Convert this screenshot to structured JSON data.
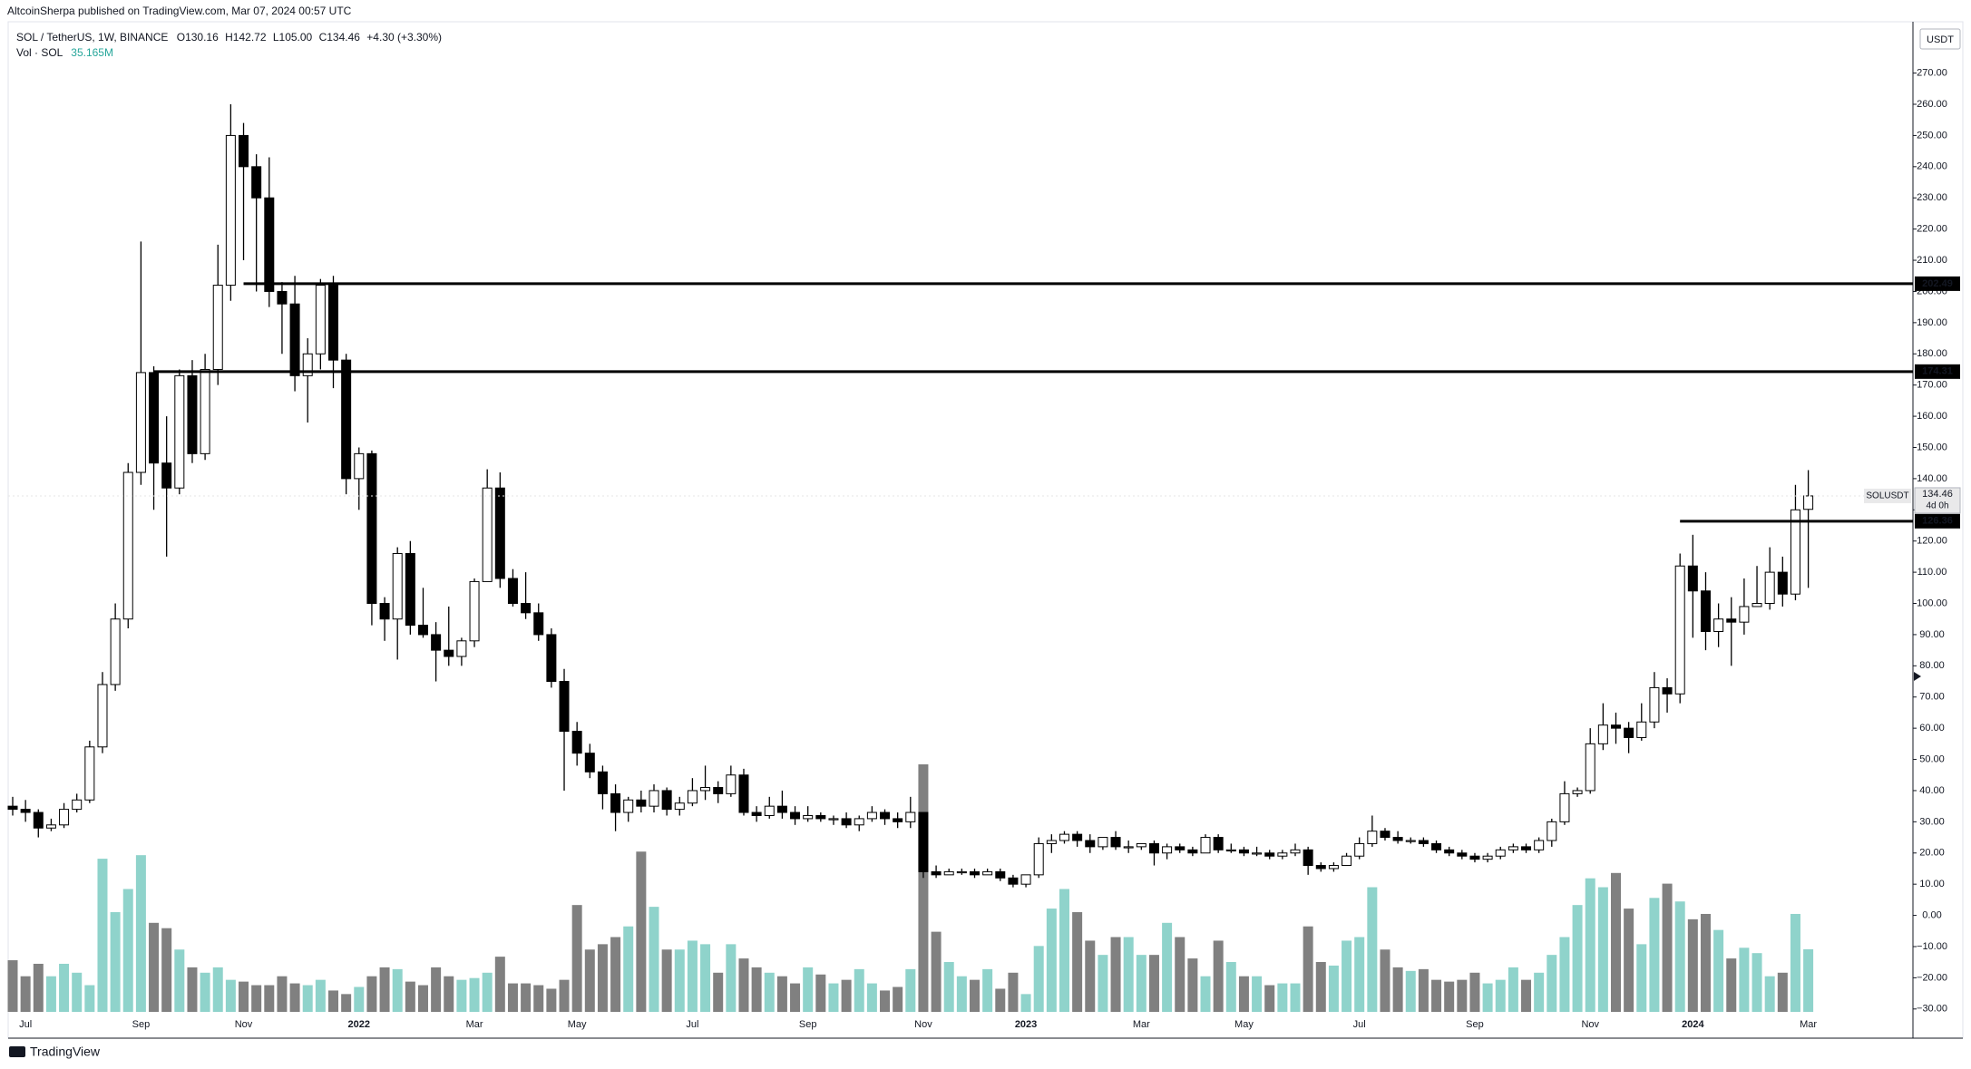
{
  "header": {
    "publisher": "AltcoinSherpa published on TradingView.com, Mar 07, 2024 00:57 UTC"
  },
  "chart_data": {
    "type": "candlestick",
    "legend": {
      "symbol": "SOL / TetherUS, 1W, BINANCE",
      "open": "O130.16",
      "high": "H142.72",
      "low": "L105.00",
      "close": "C134.46",
      "change": "+4.30 (+3.30%)",
      "volume_name": "Vol · SOL",
      "volume_value": "35.165M"
    },
    "currency": "USDT",
    "categories": [
      null,
      "Jul",
      null,
      null,
      null,
      null,
      null,
      null,
      null,
      null,
      "Sep",
      null,
      null,
      null,
      null,
      null,
      null,
      null,
      "Nov",
      null,
      null,
      null,
      null,
      null,
      null,
      null,
      null,
      "2022",
      null,
      null,
      null,
      null,
      null,
      null,
      null,
      null,
      "Mar",
      null,
      null,
      null,
      null,
      null,
      null,
      null,
      "May",
      null,
      null,
      null,
      null,
      null,
      null,
      null,
      null,
      "Jul",
      null,
      null,
      null,
      null,
      null,
      null,
      null,
      null,
      "Sep",
      null,
      null,
      null,
      null,
      null,
      null,
      null,
      null,
      "Nov",
      null,
      null,
      null,
      null,
      null,
      null,
      null,
      "2023",
      null,
      null,
      null,
      null,
      null,
      null,
      null,
      null,
      "Mar",
      null,
      null,
      null,
      null,
      null,
      null,
      null,
      "May",
      null,
      null,
      null,
      null,
      null,
      null,
      null,
      null,
      "Jul",
      null,
      null,
      null,
      null,
      null,
      null,
      null,
      null,
      "Sep",
      null,
      null,
      null,
      null,
      null,
      null,
      null,
      null,
      "Nov",
      null,
      null,
      null,
      null,
      null,
      null,
      null,
      "2024",
      null,
      null,
      null,
      null,
      null,
      null,
      null,
      null,
      "Mar"
    ],
    "open": [
      35,
      34,
      33,
      28,
      29,
      34,
      37,
      54,
      74,
      95,
      142,
      174,
      145,
      137,
      173,
      148,
      175,
      202,
      250,
      240,
      230,
      200,
      196,
      173,
      180,
      202,
      178,
      140,
      148,
      100,
      95,
      116,
      93,
      90,
      85,
      83,
      88,
      107,
      137,
      108,
      100,
      97,
      90,
      75,
      59,
      52,
      46,
      39,
      33,
      37,
      35,
      40,
      34,
      36,
      40,
      41,
      39,
      45,
      33,
      32,
      35,
      33,
      31,
      32,
      31,
      31,
      29,
      31,
      33,
      31,
      30,
      33,
      14,
      13,
      14,
      14,
      13,
      14,
      12,
      10,
      13,
      23,
      24,
      26,
      24,
      22,
      25,
      22,
      22,
      23,
      20,
      22,
      21,
      20,
      25,
      21,
      21,
      20,
      20,
      19,
      20,
      21,
      16,
      15,
      16,
      19,
      23,
      27,
      25,
      24,
      24,
      23,
      21,
      20,
      19,
      18,
      19,
      21,
      22,
      21,
      24,
      30,
      39,
      40,
      55,
      61,
      60,
      57,
      62,
      73,
      71,
      112,
      104,
      91,
      95,
      94,
      99,
      100,
      110,
      103,
      130.16
    ],
    "high": [
      38,
      37,
      34,
      31,
      36,
      39,
      56,
      78,
      100,
      145,
      216,
      176,
      160,
      175,
      178,
      180,
      215,
      260,
      254,
      244,
      243,
      203,
      205,
      185,
      204,
      205,
      180,
      150,
      149,
      102,
      118,
      120,
      105,
      94,
      99,
      89,
      108,
      143,
      142,
      111,
      110,
      100,
      92,
      79,
      62,
      55,
      48,
      42,
      38,
      40,
      42,
      41,
      38,
      44,
      48,
      43,
      48,
      47,
      35,
      38,
      40,
      35,
      35,
      33,
      32,
      33,
      32,
      35,
      34,
      33,
      38,
      33,
      16,
      15,
      15,
      15,
      15,
      15,
      13,
      13,
      25,
      26,
      27,
      27,
      26,
      25,
      27,
      24,
      23,
      24,
      23,
      23,
      22,
      26,
      26,
      23,
      22,
      22,
      21,
      21,
      23,
      22,
      17,
      17,
      20,
      25,
      32,
      28,
      27,
      25,
      25,
      24,
      22,
      21,
      20,
      20,
      22,
      23,
      23,
      25,
      31,
      43,
      41,
      60,
      68,
      65,
      62,
      68,
      78,
      76,
      116,
      122,
      110,
      100,
      102,
      108,
      112,
      118,
      115,
      138,
      142.72
    ],
    "low": [
      32,
      30,
      25,
      27,
      28,
      33,
      36,
      52,
      72,
      92,
      138,
      130,
      115,
      135,
      145,
      146,
      170,
      197,
      210,
      200,
      195,
      180,
      168,
      158,
      175,
      169,
      135,
      130,
      93,
      88,
      82,
      90,
      89,
      75,
      80,
      80,
      86,
      107,
      105,
      99,
      95,
      88,
      73,
      40,
      48,
      44,
      34,
      27,
      30,
      33,
      33,
      32,
      32,
      35,
      37,
      36,
      38,
      32,
      30,
      31,
      31,
      29,
      30,
      30,
      29,
      28,
      27,
      30,
      29,
      28,
      28,
      12,
      12,
      13,
      13,
      12,
      13,
      11,
      9,
      9,
      12,
      20,
      23,
      22,
      20,
      21,
      21,
      20,
      21,
      16,
      18,
      20,
      19,
      20,
      20,
      20,
      19,
      19,
      18,
      18,
      19,
      13,
      14,
      14,
      16,
      18,
      22,
      24,
      23,
      23,
      22,
      20,
      19,
      18,
      17,
      17,
      18,
      20,
      20,
      20,
      22,
      29,
      38,
      39,
      53,
      55,
      52,
      56,
      60,
      65,
      68,
      89,
      85,
      86,
      80,
      90,
      99,
      98,
      99,
      101,
      105
    ],
    "close": [
      34,
      33,
      28,
      29,
      34,
      37,
      54,
      74,
      95,
      142,
      174,
      145,
      137,
      173,
      148,
      175,
      202,
      250,
      240,
      230,
      200,
      196,
      173,
      180,
      202,
      178,
      140,
      148,
      100,
      95,
      116,
      93,
      90,
      85,
      83,
      88,
      107,
      137,
      108,
      100,
      97,
      90,
      75,
      59,
      52,
      46,
      39,
      33,
      37,
      35,
      40,
      34,
      36,
      40,
      41,
      39,
      45,
      33,
      32,
      35,
      33,
      31,
      32,
      31,
      31,
      29,
      31,
      33,
      31,
      30,
      33,
      14,
      13,
      14,
      14,
      13,
      14,
      12,
      10,
      13,
      23,
      24,
      26,
      24,
      22,
      25,
      22,
      22,
      23,
      20,
      22,
      21,
      20,
      25,
      21,
      21,
      20,
      20,
      19,
      20,
      21,
      16,
      15,
      16,
      19,
      23,
      27,
      25,
      24,
      24,
      23,
      21,
      20,
      19,
      18,
      19,
      21,
      22,
      21,
      24,
      30,
      39,
      40,
      55,
      61,
      60,
      57,
      62,
      73,
      71,
      112,
      104,
      91,
      95,
      94,
      99,
      100,
      110,
      103,
      130,
      134.46
    ],
    "volume": [
      29,
      20,
      27,
      20,
      27,
      22,
      15,
      86,
      56,
      69,
      88,
      50,
      47,
      35,
      25,
      22,
      25,
      18,
      17,
      15,
      15,
      20,
      16,
      15,
      18,
      12,
      10,
      14,
      20,
      25,
      24,
      17,
      15,
      25,
      20,
      18,
      19,
      22,
      31,
      16,
      16,
      15,
      13,
      18,
      60,
      35,
      38,
      42,
      48,
      90,
      59,
      35,
      35,
      40,
      38,
      22,
      38,
      30,
      25,
      22,
      20,
      16,
      25,
      21,
      16,
      18,
      24,
      16,
      12,
      14,
      24,
      139,
      45,
      28,
      20,
      18,
      24,
      13,
      22,
      10,
      37,
      58,
      69,
      56,
      40,
      32,
      42,
      42,
      32,
      32,
      50,
      42,
      30,
      20,
      40,
      28,
      20,
      20,
      15,
      16,
      16,
      48,
      28,
      26,
      40,
      42,
      70,
      35,
      25,
      23,
      24,
      18,
      17,
      18,
      22,
      16,
      18,
      25,
      18,
      22,
      32,
      42,
      60,
      75,
      70,
      78,
      58,
      38,
      64,
      72,
      62,
      52,
      55,
      46,
      30,
      36,
      33,
      20,
      22,
      55,
      35.165
    ],
    "up_color": "#ffffff",
    "down_color": "#000000",
    "volume_up_color": "#8fd3cb",
    "volume_down_color": "#808080",
    "hlines": [
      202.49,
      174.31,
      126.36
    ],
    "last_price": {
      "symbol": "SOLUSDT",
      "value": 134.46,
      "countdown": "4d 0h"
    },
    "ylim": [
      -35,
      285
    ],
    "yticks": [
      {
        "value": -30,
        "label": "−30.00"
      },
      {
        "value": -20,
        "label": "−20.00"
      },
      {
        "value": -10,
        "label": "−10.00"
      },
      {
        "value": 0,
        "label": "0.00"
      },
      {
        "value": 10,
        "label": "10.00"
      },
      {
        "value": 20,
        "label": "20.00"
      },
      {
        "value": 30,
        "label": "30.00"
      },
      {
        "value": 40,
        "label": "40.00"
      },
      {
        "value": 50,
        "label": "50.00"
      },
      {
        "value": 60,
        "label": "60.00"
      },
      {
        "value": 70,
        "label": "70.00"
      },
      {
        "value": 80,
        "label": "80.00"
      },
      {
        "value": 90,
        "label": "90.00"
      },
      {
        "value": 100,
        "label": "100.00"
      },
      {
        "value": 110,
        "label": "110.00"
      },
      {
        "value": 120,
        "label": "120.00"
      },
      {
        "value": 130,
        "label": "130.00"
      },
      {
        "value": 140,
        "label": "140.00"
      },
      {
        "value": 150,
        "label": "150.00"
      },
      {
        "value": 160,
        "label": "160.00"
      },
      {
        "value": 170,
        "label": "170.00"
      },
      {
        "value": 180,
        "label": "180.00"
      },
      {
        "value": 190,
        "label": "190.00"
      },
      {
        "value": 200,
        "label": "200.00"
      },
      {
        "value": 210,
        "label": "210.00"
      },
      {
        "value": 220,
        "label": "220.00"
      },
      {
        "value": 230,
        "label": "230.00"
      },
      {
        "value": 240,
        "label": "240.00"
      },
      {
        "value": 250,
        "label": "250.00"
      },
      {
        "value": 260,
        "label": "260.00"
      },
      {
        "value": 270,
        "label": "270.00"
      }
    ]
  },
  "footer": {
    "brand": "TradingView"
  }
}
